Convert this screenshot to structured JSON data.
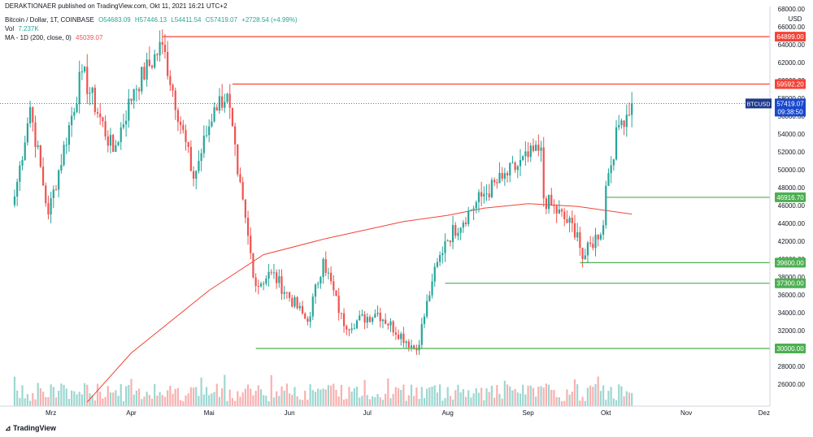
{
  "header": {
    "published": "DERAKTIONAER published on TradingView.com, Okt 11, 2021 16:21 UTC+2",
    "symbol": "Bitcoin / Dollar, 1T, COINBASE",
    "open": "O54683.09",
    "high": "H57446.13",
    "low": "L54411.54",
    "close": "C57419.07",
    "change": "+2728.54 (+4.99%)",
    "vol_label": "Vol",
    "vol_value": "7.237K",
    "ma_label": "MA - 1D (200, close, 0)",
    "ma_value": "45039.07"
  },
  "footer": {
    "brand": "TradingView"
  },
  "colors": {
    "up": "#26a69a",
    "down": "#ef5350",
    "support": "#4caf50",
    "resistance": "#f44336",
    "ma": "#f44336",
    "last": "#1848cc",
    "ticker": "#1e3a8a"
  },
  "chart_data": {
    "type": "candlestick",
    "currency": "USD",
    "x_ticks": [
      "Mrz",
      "Apr",
      "Mai",
      "Jun",
      "Jul",
      "Aug",
      "Sep",
      "Okt",
      "Nov",
      "Dez"
    ],
    "y_ticks": [
      26000,
      28000,
      30000,
      32000,
      34000,
      36000,
      38000,
      40000,
      42000,
      44000,
      46000,
      48000,
      50000,
      52000,
      54000,
      56000,
      58000,
      60000,
      62000,
      64000,
      66000,
      68000
    ],
    "ylim": [
      24000,
      69000
    ],
    "horizontal_levels": [
      {
        "label": "64899.00",
        "value": 64899,
        "kind": "resistance",
        "start": "2021-04-13"
      },
      {
        "label": "59592.20",
        "value": 59592,
        "kind": "resistance",
        "start": "2021-05-10"
      },
      {
        "label": "46916.70",
        "value": 46917,
        "kind": "support",
        "start": "2021-10-01"
      },
      {
        "label": "39600.00",
        "value": 39600,
        "kind": "support",
        "start": "2021-09-21"
      },
      {
        "label": "37300.00",
        "value": 37300,
        "kind": "support",
        "start": "2021-07-31"
      },
      {
        "label": "30000.00",
        "value": 30000,
        "kind": "support",
        "start": "2021-05-19"
      }
    ],
    "last_price": {
      "ticker": "BTCUSD",
      "value": 57419.07,
      "label": "57419.07",
      "countdown": "09:38:50"
    },
    "close_keypoints": [
      {
        "date": "2021-02-15",
        "close": 47000
      },
      {
        "date": "2021-02-21",
        "close": 57000
      },
      {
        "date": "2021-02-28",
        "close": 45000
      },
      {
        "date": "2021-03-13",
        "close": 61000
      },
      {
        "date": "2021-03-25",
        "close": 52000
      },
      {
        "date": "2021-04-02",
        "close": 59000
      },
      {
        "date": "2021-04-13",
        "close": 64000
      },
      {
        "date": "2021-04-25",
        "close": 49000
      },
      {
        "date": "2021-05-03",
        "close": 57000
      },
      {
        "date": "2021-05-08",
        "close": 58500
      },
      {
        "date": "2021-05-12",
        "close": 49500
      },
      {
        "date": "2021-05-19",
        "close": 37000
      },
      {
        "date": "2021-05-25",
        "close": 38500
      },
      {
        "date": "2021-06-08",
        "close": 33000
      },
      {
        "date": "2021-06-14",
        "close": 40000
      },
      {
        "date": "2021-06-22",
        "close": 32500
      },
      {
        "date": "2021-07-05",
        "close": 34000
      },
      {
        "date": "2021-07-20",
        "close": 29800
      },
      {
        "date": "2021-07-26",
        "close": 37500
      },
      {
        "date": "2021-07-31",
        "close": 42000
      },
      {
        "date": "2021-08-14",
        "close": 47000
      },
      {
        "date": "2021-08-22",
        "close": 49000
      },
      {
        "date": "2021-09-06",
        "close": 52500
      },
      {
        "date": "2021-09-07",
        "close": 46800
      },
      {
        "date": "2021-09-20",
        "close": 43000
      },
      {
        "date": "2021-09-22",
        "close": 40000
      },
      {
        "date": "2021-09-30",
        "close": 43800
      },
      {
        "date": "2021-10-01",
        "close": 48200
      },
      {
        "date": "2021-10-06",
        "close": 55000
      },
      {
        "date": "2021-10-11",
        "close": 57419
      }
    ],
    "ma200": [
      {
        "date": "2021-03-15",
        "value": 24000
      },
      {
        "date": "2021-04-01",
        "value": 29500
      },
      {
        "date": "2021-05-01",
        "value": 36500
      },
      {
        "date": "2021-05-22",
        "value": 40500
      },
      {
        "date": "2021-06-15",
        "value": 42300
      },
      {
        "date": "2021-07-15",
        "value": 44200
      },
      {
        "date": "2021-08-01",
        "value": 44900
      },
      {
        "date": "2021-08-15",
        "value": 45700
      },
      {
        "date": "2021-09-01",
        "value": 46200
      },
      {
        "date": "2021-09-20",
        "value": 45900
      },
      {
        "date": "2021-10-11",
        "value": 45039
      }
    ]
  }
}
